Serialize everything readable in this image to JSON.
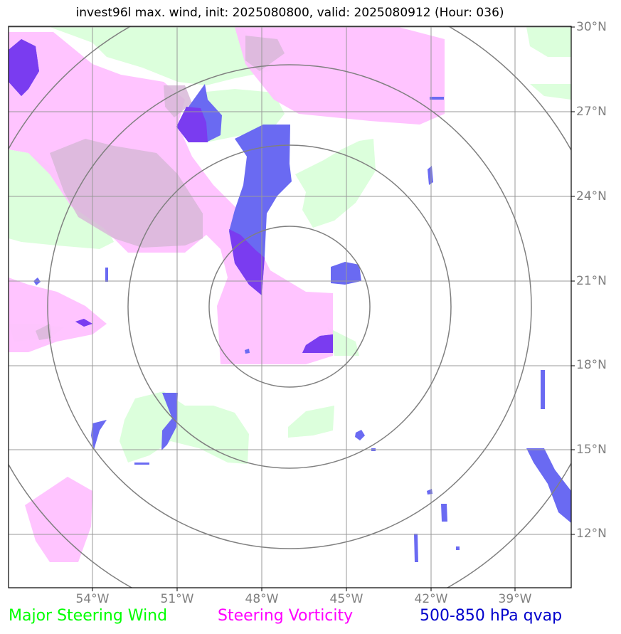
{
  "title": "invest96l max. wind, init: 2025080800, valid: 2025080912 (Hour: 036)",
  "lat_labels": [
    "30°N",
    "27°N",
    "24°N",
    "21°N",
    "18°N",
    "15°N",
    "12°N"
  ],
  "lon_labels": [
    "54°W",
    "51°W",
    "48°W",
    "45°W",
    "42°W",
    "39°W"
  ],
  "legend": {
    "wind": "Major Steering Wind",
    "vorticity": "Steering Vorticity",
    "qvap": "500-850 hPa qvap"
  },
  "colors": {
    "wind": "#00ff00",
    "vorticity": "#ff00ff",
    "qvap": "#0000cc",
    "wind_fill": "#dcffdc",
    "vorticity_fill": "#ffbfff",
    "qvap_fill": "#6a6af2"
  }
}
